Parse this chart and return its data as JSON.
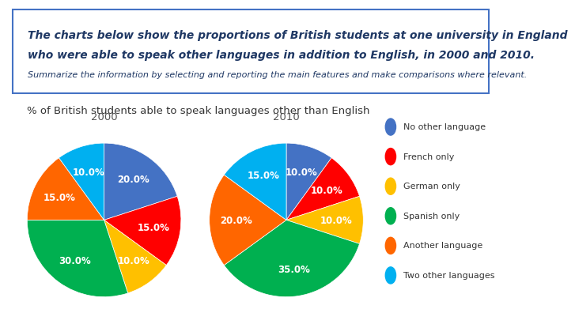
{
  "title_main": "% of British students able to speak languages other than English",
  "title_box_line1": "The charts below show the proportions of British students at one university in England",
  "title_box_line2": "who were able to speak other languages in addition to English, in 2000 and 2010.",
  "title_box_line3": "Summarize the information by selecting and reporting the main features and make comparisons where relevant.",
  "pie2000_label": "2000",
  "pie2010_label": "2010",
  "categories": [
    "No other language",
    "French only",
    "German only",
    "Spanish only",
    "Another language",
    "Two other languages"
  ],
  "colors": [
    "#4472C4",
    "#FF0000",
    "#FFC000",
    "#00B050",
    "#FF6600",
    "#00B0F0"
  ],
  "values_2000": [
    20.0,
    15.0,
    10.0,
    30.0,
    15.0,
    10.0
  ],
  "values_2010": [
    10.0,
    10.0,
    10.0,
    35.0,
    20.0,
    15.0
  ],
  "startangle_2000": 90,
  "startangle_2010": 90,
  "bg_color": "#FFFFFF",
  "box_edge_color": "#4472C4",
  "title_color": "#1F3864",
  "subtitle_color": "#1F3864",
  "label_fontsize": 8.5,
  "legend_fontsize": 9
}
